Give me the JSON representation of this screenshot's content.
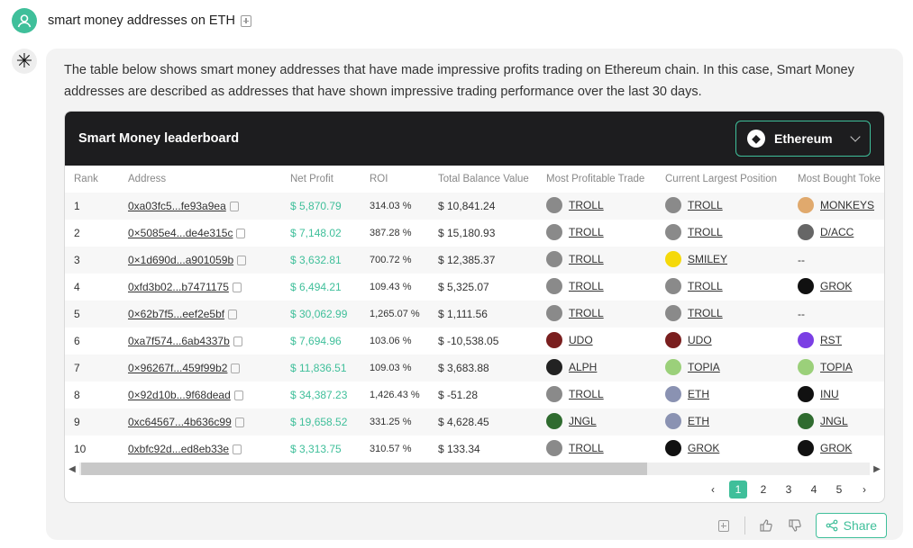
{
  "query": {
    "text": "smart money addresses on ETH"
  },
  "intro": "The table below shows smart money addresses that have made impressive profits trading on Ethereum chain. In this case, Smart Money addresses are described as addresses that have shown impressive trading performance over the last 30 days.",
  "card": {
    "title": "Smart Money leaderboard",
    "chain": "Ethereum"
  },
  "columns": [
    "Rank",
    "Address",
    "Net Profit",
    "ROI",
    "Total Balance Value",
    "Most Profitable Trade",
    "Current Largest Position",
    "Most Bought Toke"
  ],
  "rows": [
    {
      "rank": "1",
      "address": "0xa03fc5...fe93a9ea",
      "profit": "$ 5,870.79",
      "roi": "314.03 %",
      "balance": "$ 10,841.24",
      "mpt": "TROLL",
      "clp": "TROLL",
      "mbt": "MONKEYS"
    },
    {
      "rank": "2",
      "address": "0×5085e4...de4e315c",
      "profit": "$ 7,148.02",
      "roi": "387.28 %",
      "balance": "$ 15,180.93",
      "mpt": "TROLL",
      "clp": "TROLL",
      "mbt": "D/ACC"
    },
    {
      "rank": "3",
      "address": "0×1d690d...a901059b",
      "profit": "$ 3,632.81",
      "roi": "700.72 %",
      "balance": "$ 12,385.37",
      "mpt": "TROLL",
      "clp": "SMILEY",
      "mbt": "--"
    },
    {
      "rank": "4",
      "address": "0xfd3b02...b7471175",
      "profit": "$ 6,494.21",
      "roi": "109.43 %",
      "balance": "$ 5,325.07",
      "mpt": "TROLL",
      "clp": "TROLL",
      "mbt": "GROK"
    },
    {
      "rank": "5",
      "address": "0×62b7f5...eef2e5bf",
      "profit": "$ 30,062.99",
      "roi": "1,265.07 %",
      "balance": "$ 1,111.56",
      "mpt": "TROLL",
      "clp": "TROLL",
      "mbt": "--"
    },
    {
      "rank": "6",
      "address": "0xa7f574...6ab4337b",
      "profit": "$ 7,694.96",
      "roi": "103.06 %",
      "balance": "$ -10,538.05",
      "mpt": "UDO",
      "clp": "UDO",
      "mbt": "RST"
    },
    {
      "rank": "7",
      "address": "0×96267f...459f99b2",
      "profit": "$ 11,836.51",
      "roi": "109.03 %",
      "balance": "$ 3,683.88",
      "mpt": "ALPH",
      "clp": "TOPIA",
      "mbt": "TOPIA"
    },
    {
      "rank": "8",
      "address": "0×92d10b...9f68dead",
      "profit": "$ 34,387.23",
      "roi": "1,426.43 %",
      "balance": "$ -51.28",
      "mpt": "TROLL",
      "clp": "ETH",
      "mbt": "INU"
    },
    {
      "rank": "9",
      "address": "0xc64567...4b636c99",
      "profit": "$ 19,658.52",
      "roi": "331.25 %",
      "balance": "$ 4,628.45",
      "mpt": "JNGL",
      "clp": "ETH",
      "mbt": "JNGL"
    },
    {
      "rank": "10",
      "address": "0xbfc92d...ed8eb33e",
      "profit": "$ 3,313.75",
      "roi": "310.57 %",
      "balance": "$ 133.34",
      "mpt": "TROLL",
      "clp": "GROK",
      "mbt": "GROK"
    }
  ],
  "token_colors": {
    "TROLL": "#8a8a8a",
    "SMILEY": "#f5d90a",
    "GROK": "#111111",
    "MONKEYS": "#e0a96d",
    "D/ACC": "#666666",
    "UDO": "#7a1f1f",
    "RST": "#7b3fe4",
    "ALPH": "#222222",
    "TOPIA": "#9bd07a",
    "ETH": "#8a92b2",
    "INU": "#111111",
    "JNGL": "#2f6b2f"
  },
  "pagination": {
    "pages": [
      "1",
      "2",
      "3",
      "4",
      "5"
    ],
    "current": "1"
  },
  "footer": {
    "share_label": "Share"
  }
}
